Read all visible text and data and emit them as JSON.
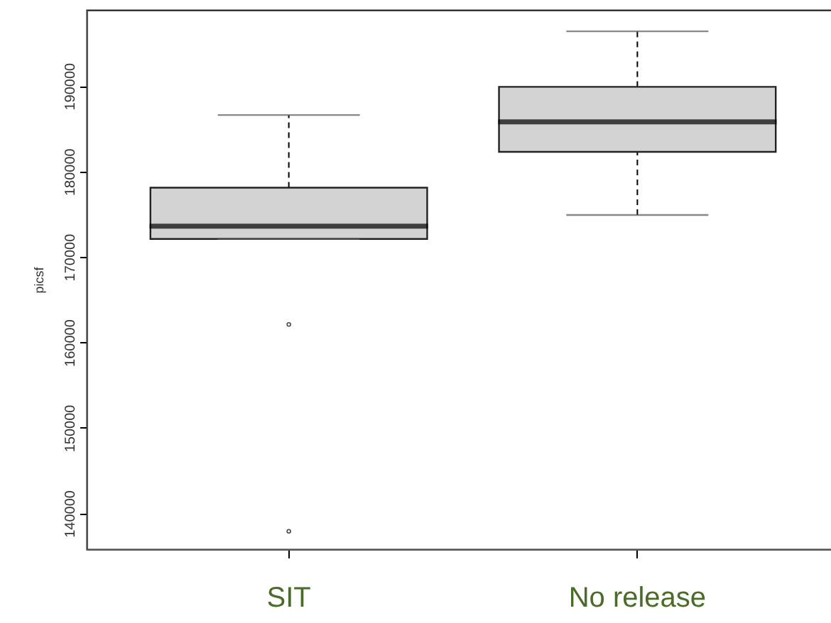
{
  "chart_data": {
    "type": "box",
    "categories": [
      "SIT",
      "No release"
    ],
    "ylabel": "picsf",
    "ylim": [
      135800,
      198900
    ],
    "yticks": [
      140000,
      150000,
      160000,
      170000,
      180000,
      190000
    ],
    "grid": false,
    "boxes": [
      {
        "low": 172100,
        "q1": 172100,
        "median": 173600,
        "q3": 178100,
        "high": 186600,
        "outliers": [
          162100,
          137900
        ]
      },
      {
        "low": 174900,
        "q1": 182300,
        "median": 185800,
        "q3": 189900,
        "high": 196400
      }
    ]
  }
}
